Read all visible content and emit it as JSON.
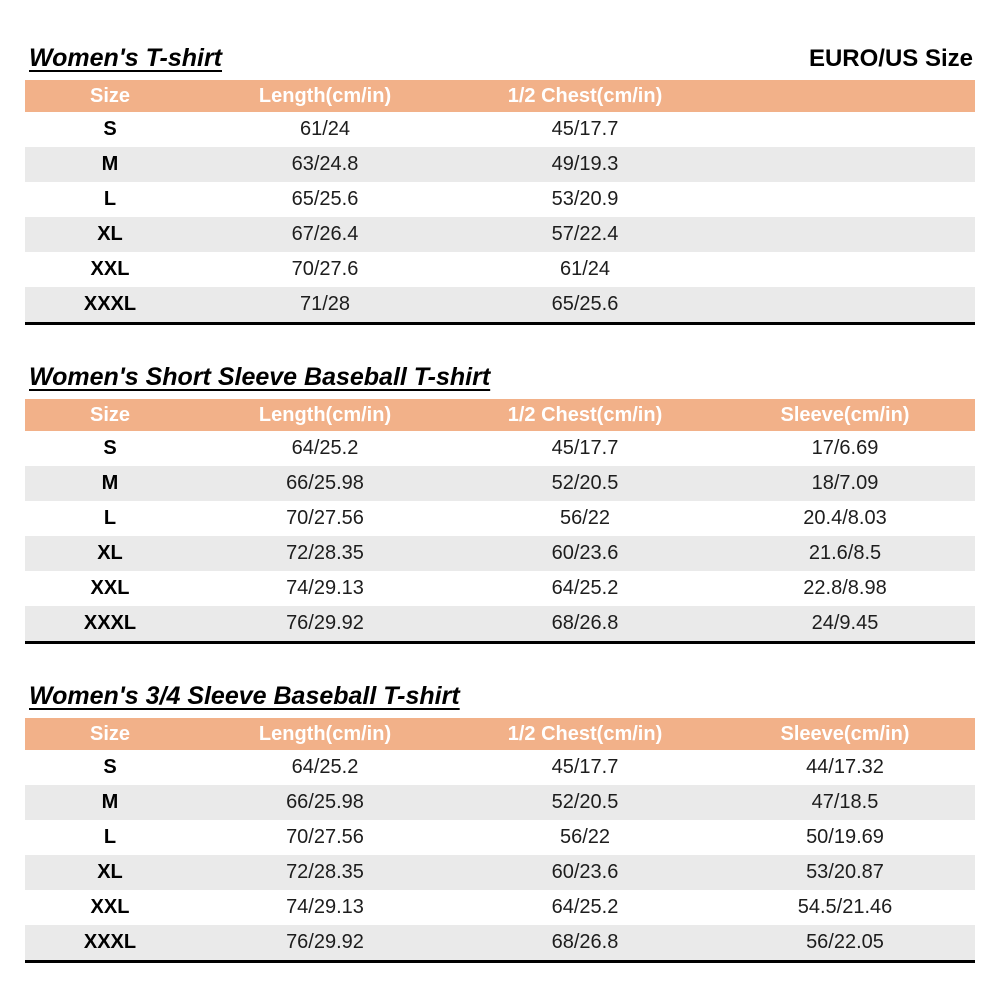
{
  "header": {
    "euro_us_size_label": "EURO/US Size"
  },
  "colors": {
    "table_header_bg": "#F2B189",
    "table_header_text": "#FFFFFF",
    "row_alt_bg": "#EAEAEA",
    "table_bottom_border": "#000000"
  },
  "tables": [
    {
      "title": "Women's T-shirt",
      "columns": [
        "Size",
        "Length(cm/in)",
        "1/2 Chest(cm/in)",
        ""
      ],
      "rows": [
        [
          "S",
          "61/24",
          "45/17.7",
          ""
        ],
        [
          "M",
          "63/24.8",
          "49/19.3",
          ""
        ],
        [
          "L",
          "65/25.6",
          "53/20.9",
          ""
        ],
        [
          "XL",
          "67/26.4",
          "57/22.4",
          ""
        ],
        [
          "XXL",
          "70/27.6",
          "61/24",
          ""
        ],
        [
          "XXXL",
          "71/28",
          "65/25.6",
          ""
        ]
      ]
    },
    {
      "title": "Women's Short Sleeve Baseball T-shirt",
      "columns": [
        "Size",
        "Length(cm/in)",
        "1/2 Chest(cm/in)",
        "Sleeve(cm/in)"
      ],
      "rows": [
        [
          "S",
          "64/25.2",
          "45/17.7",
          "17/6.69"
        ],
        [
          "M",
          "66/25.98",
          "52/20.5",
          "18/7.09"
        ],
        [
          "L",
          "70/27.56",
          "56/22",
          "20.4/8.03"
        ],
        [
          "XL",
          "72/28.35",
          "60/23.6",
          "21.6/8.5"
        ],
        [
          "XXL",
          "74/29.13",
          "64/25.2",
          "22.8/8.98"
        ],
        [
          "XXXL",
          "76/29.92",
          "68/26.8",
          "24/9.45"
        ]
      ]
    },
    {
      "title": "Women's 3/4 Sleeve Baseball T-shirt",
      "columns": [
        "Size",
        "Length(cm/in)",
        "1/2 Chest(cm/in)",
        "Sleeve(cm/in)"
      ],
      "rows": [
        [
          "S",
          "64/25.2",
          "45/17.7",
          "44/17.32"
        ],
        [
          "M",
          "66/25.98",
          "52/20.5",
          "47/18.5"
        ],
        [
          "L",
          "70/27.56",
          "56/22",
          "50/19.69"
        ],
        [
          "XL",
          "72/28.35",
          "60/23.6",
          "53/20.87"
        ],
        [
          "XXL",
          "74/29.13",
          "64/25.2",
          "54.5/21.46"
        ],
        [
          "XXXL",
          "76/29.92",
          "68/26.8",
          "56/22.05"
        ]
      ]
    }
  ]
}
